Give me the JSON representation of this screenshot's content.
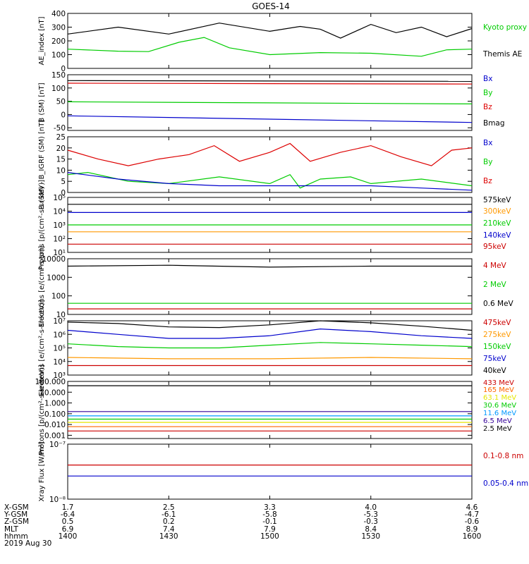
{
  "title": "GOES-14",
  "chart_data": [
    {
      "type": "line",
      "ylabel": "AE_index [nT]",
      "ylim": [
        0,
        400
      ],
      "yticks": [
        "0",
        "100",
        "200",
        "300",
        "400"
      ],
      "legend": [
        {
          "label": "Kyoto proxy AE",
          "color": "#00cc00"
        },
        {
          "label": "Themis AE",
          "color": "#000000"
        }
      ],
      "series": [
        {
          "name": "Themis AE",
          "color": "#000000",
          "x": [
            0,
            0.5,
            1,
            1.5,
            2,
            2.3,
            2.5,
            2.7,
            3,
            3.25,
            3.5,
            3.75,
            4
          ],
          "values": [
            250,
            300,
            250,
            330,
            270,
            305,
            285,
            220,
            320,
            260,
            300,
            230,
            290
          ]
        },
        {
          "name": "Kyoto proxy AE",
          "color": "#00cc00",
          "x": [
            0,
            0.5,
            0.8,
            1.1,
            1.35,
            1.6,
            2,
            2.5,
            3,
            3.5,
            3.75,
            4
          ],
          "values": [
            140,
            125,
            122,
            190,
            225,
            150,
            100,
            115,
            110,
            88,
            135,
            140
          ]
        }
      ]
    },
    {
      "type": "line",
      "ylabel": "B (SM) [nT]",
      "ylim": [
        -60,
        150
      ],
      "yticks": [
        "-50",
        "0",
        "50",
        "100",
        "150"
      ],
      "legend": [
        {
          "label": "Bx",
          "color": "#0000cc"
        },
        {
          "label": "By",
          "color": "#00cc00"
        },
        {
          "label": "Bz",
          "color": "#dd0000"
        },
        {
          "label": "Bmag",
          "color": "#000000"
        }
      ],
      "series": [
        {
          "name": "Bmag",
          "color": "#000000",
          "x": [
            0,
            4
          ],
          "values": [
            128,
            125
          ]
        },
        {
          "name": "Bz",
          "color": "#dd0000",
          "x": [
            0,
            4
          ],
          "values": [
            118,
            115
          ]
        },
        {
          "name": "By",
          "color": "#00cc00",
          "x": [
            0,
            4
          ],
          "values": [
            48,
            40
          ]
        },
        {
          "name": "Bx",
          "color": "#0000cc",
          "x": [
            0,
            4
          ],
          "values": [
            -5,
            -30
          ]
        }
      ]
    },
    {
      "type": "line",
      "ylabel": "B (SM) - B_IGRF (SM) [nT]",
      "ylim": [
        0,
        25
      ],
      "yticks": [
        "0",
        "5",
        "10",
        "15",
        "20",
        "25"
      ],
      "legend": [
        {
          "label": "Bx",
          "color": "#0000cc"
        },
        {
          "label": "By",
          "color": "#00cc00"
        },
        {
          "label": "Bz",
          "color": "#dd0000"
        }
      ],
      "series": [
        {
          "name": "Bz",
          "color": "#dd0000",
          "x": [
            0,
            0.3,
            0.6,
            0.9,
            1.2,
            1.45,
            1.7,
            2.0,
            2.2,
            2.4,
            2.7,
            3.0,
            3.3,
            3.6,
            3.8,
            4
          ],
          "values": [
            19,
            15,
            12,
            15,
            17,
            21,
            14,
            18,
            22,
            14,
            18,
            21,
            16,
            12,
            19,
            20
          ]
        },
        {
          "name": "By",
          "color": "#00cc00",
          "x": [
            0,
            0.2,
            0.6,
            1.0,
            1.5,
            2.0,
            2.2,
            2.3,
            2.5,
            2.8,
            3.0,
            3.5,
            4
          ],
          "values": [
            8,
            9,
            5,
            4,
            7,
            4,
            8,
            2,
            6,
            7,
            4,
            6,
            3
          ]
        },
        {
          "name": "Bx",
          "color": "#0000cc",
          "x": [
            0,
            0.5,
            1,
            1.5,
            2,
            2.5,
            3,
            3.5,
            4
          ],
          "values": [
            9,
            6,
            4,
            3,
            3,
            3,
            3,
            2,
            1
          ]
        }
      ]
    },
    {
      "type": "line",
      "ylabel": "Protons [p/(cm²-s-sr-keV)]",
      "yscale": "log",
      "ylim_exp": [
        1,
        5
      ],
      "yticks": [
        "10¹",
        "10²",
        "10³",
        "10⁴",
        "10⁵"
      ],
      "legend": [
        {
          "label": "575keV",
          "color": "#000000"
        },
        {
          "label": "300keV",
          "color": "#ff9900"
        },
        {
          "label": "210keV",
          "color": "#00cc00"
        },
        {
          "label": "140keV",
          "color": "#0000cc"
        },
        {
          "label": "95keV",
          "color": "#cc0000"
        }
      ],
      "series": [
        {
          "name": "575keV",
          "color": "#000000",
          "x": [
            0,
            4
          ],
          "values": [
            4.5,
            4.5
          ]
        },
        {
          "name": "140keV",
          "color": "#0000cc",
          "x": [
            0,
            4
          ],
          "values": [
            3.9,
            3.9
          ]
        },
        {
          "name": "210keV",
          "color": "#00cc00",
          "x": [
            0,
            4
          ],
          "values": [
            3.0,
            3.0
          ]
        },
        {
          "name": "300keV",
          "color": "#ff9900",
          "x": [
            0,
            4
          ],
          "values": [
            2.5,
            2.5
          ]
        },
        {
          "name": "95keV",
          "color": "#cc0000",
          "x": [
            0,
            4
          ],
          "values": [
            1.6,
            1.6
          ]
        }
      ]
    },
    {
      "type": "line",
      "ylabel": "Electrons [e/(cm²-s-sr)]",
      "yscale": "log",
      "ylim_exp": [
        1,
        4
      ],
      "yticks": [
        "10",
        "100",
        "1000",
        "10000"
      ],
      "legend": [
        {
          "label": "4 MeV",
          "color": "#cc0000"
        },
        {
          "label": "2 MeV",
          "color": "#00cc00"
        },
        {
          "label": "0.6 MeV",
          "color": "#000000"
        }
      ],
      "series": [
        {
          "name": "0.6 MeV",
          "color": "#000000",
          "x": [
            0,
            1,
            2,
            3,
            4
          ],
          "values": [
            3.6,
            3.65,
            3.55,
            3.6,
            3.6
          ]
        },
        {
          "name": "2 MeV",
          "color": "#00cc00",
          "x": [
            0,
            4
          ],
          "values": [
            1.6,
            1.6
          ]
        },
        {
          "name": "4 MeV",
          "color": "#cc0000",
          "x": [
            0,
            4
          ],
          "values": [
            1.3,
            1.3
          ]
        }
      ]
    },
    {
      "type": "line",
      "ylabel": "Electrons [e/(cm²-s-sr-keV)]",
      "yscale": "log",
      "ylim_exp": [
        3,
        7
      ],
      "yticks": [
        "10³",
        "10⁴",
        "10⁵",
        "10⁶",
        "10⁷"
      ],
      "legend": [
        {
          "label": "475keV",
          "color": "#cc0000"
        },
        {
          "label": "275keV",
          "color": "#ff9900"
        },
        {
          "label": "150keV",
          "color": "#00cc00"
        },
        {
          "label": "75keV",
          "color": "#0000cc"
        },
        {
          "label": "40keV",
          "color": "#000000"
        }
      ],
      "series": [
        {
          "name": "40keV",
          "color": "#000000",
          "x": [
            0,
            0.5,
            1,
            1.5,
            2,
            2.5,
            3,
            3.5,
            4
          ],
          "values": [
            6.9,
            6.8,
            6.55,
            6.5,
            6.7,
            7.0,
            6.85,
            6.6,
            6.3
          ]
        },
        {
          "name": "75keV",
          "color": "#0000cc",
          "x": [
            0,
            0.5,
            1,
            1.5,
            2,
            2.5,
            3,
            3.5,
            4
          ],
          "values": [
            6.3,
            6.0,
            5.7,
            5.7,
            5.9,
            6.4,
            6.2,
            5.9,
            5.7
          ]
        },
        {
          "name": "150keV",
          "color": "#00cc00",
          "x": [
            0,
            0.5,
            1,
            1.5,
            2,
            2.5,
            3,
            3.5,
            4
          ],
          "values": [
            5.3,
            5.1,
            5.0,
            5.0,
            5.2,
            5.4,
            5.3,
            5.2,
            5.1
          ]
        },
        {
          "name": "275keV",
          "color": "#ff9900",
          "x": [
            0,
            1,
            2,
            3,
            4
          ],
          "values": [
            4.3,
            4.2,
            4.2,
            4.3,
            4.2
          ]
        },
        {
          "name": "475keV",
          "color": "#cc0000",
          "x": [
            0,
            1,
            2,
            3,
            4
          ],
          "values": [
            3.7,
            3.7,
            3.7,
            3.7,
            3.7
          ]
        }
      ]
    },
    {
      "type": "line",
      "ylabel": "Protons [p/(cm²-s-sr-keV)]",
      "yscale": "log",
      "ylim_exp": [
        -3.3,
        2
      ],
      "yticks": [
        "0.001",
        "0.010",
        "0.100",
        "1.000",
        "10.000",
        "100.000"
      ],
      "legend": [
        {
          "label": "433 MeV",
          "color": "#cc0000"
        },
        {
          "label": "165 MeV",
          "color": "#ff6600"
        },
        {
          "label": "63.1 MeV",
          "color": "#e6e600"
        },
        {
          "label": "30.6 MeV",
          "color": "#00cc00"
        },
        {
          "label": "11.6 MeV",
          "color": "#0099ff"
        },
        {
          "label": "6.5 MeV",
          "color": "#330099"
        },
        {
          "label": "2.5 MeV",
          "color": "#000000"
        }
      ],
      "series": [
        {
          "name": "2.5 MeV",
          "color": "#000000",
          "x": [
            0,
            4
          ],
          "values": [
            1.6,
            1.6
          ]
        },
        {
          "name": "6.5 MeV",
          "color": "#330099",
          "x": [
            0,
            4
          ],
          "values": [
            -0.8,
            -0.8
          ]
        },
        {
          "name": "11.6 MeV",
          "color": "#0099ff",
          "x": [
            0,
            4
          ],
          "values": [
            -1.2,
            -1.2
          ]
        },
        {
          "name": "30.6 MeV",
          "color": "#00cc00",
          "x": [
            0,
            4
          ],
          "values": [
            -1.5,
            -1.5
          ]
        },
        {
          "name": "63.1 MeV",
          "color": "#e6e600",
          "x": [
            0,
            4
          ],
          "values": [
            -1.8,
            -1.8
          ]
        },
        {
          "name": "165 MeV",
          "color": "#ff6600",
          "x": [
            0,
            4
          ],
          "values": [
            -2.2,
            -2.2
          ]
        },
        {
          "name": "433 MeV",
          "color": "#cc0000",
          "x": [
            0,
            4
          ],
          "values": [
            -2.6,
            -2.6
          ]
        }
      ]
    },
    {
      "type": "line",
      "ylabel": "Xray Flux [W/m²]",
      "yscale": "log",
      "ylim_exp": [
        -8,
        -7
      ],
      "yticks": [
        "10⁻⁸",
        "10⁻⁷"
      ],
      "legend": [
        {
          "label": "0.1-0.8 nm",
          "color": "#cc0000"
        },
        {
          "label": "0.05-0.4 nm",
          "color": "#0000cc"
        }
      ],
      "series": [
        {
          "name": "0.1-0.8 nm",
          "color": "#cc0000",
          "x": [
            0,
            4
          ],
          "values": [
            -7.38,
            -7.38
          ]
        },
        {
          "name": "0.05-0.4 nm",
          "color": "#0000cc",
          "x": [
            0,
            4
          ],
          "values": [
            -7.58,
            -7.58
          ]
        }
      ]
    }
  ],
  "xaxis": {
    "row_labels": [
      "X-GSM",
      "Y-GSM",
      "Z-GSM",
      "MLT",
      "hhmm",
      "2019 Aug 30"
    ],
    "ticks": [
      {
        "x": 0,
        "values": [
          "1.7",
          "-6.4",
          "0.5",
          "6.9",
          "1400"
        ]
      },
      {
        "x": 1,
        "values": [
          "2.5",
          "-6.1",
          "0.2",
          "7.4",
          "1430"
        ]
      },
      {
        "x": 2,
        "values": [
          "3.3",
          "-5.8",
          "-0.1",
          "7.9",
          "1500"
        ]
      },
      {
        "x": 3,
        "values": [
          "4.0",
          "-5.3",
          "-0.3",
          "8.4",
          "1530"
        ]
      },
      {
        "x": 4,
        "values": [
          "4.6",
          "-4.7",
          "-0.6",
          "8.9",
          "1600"
        ]
      }
    ]
  }
}
